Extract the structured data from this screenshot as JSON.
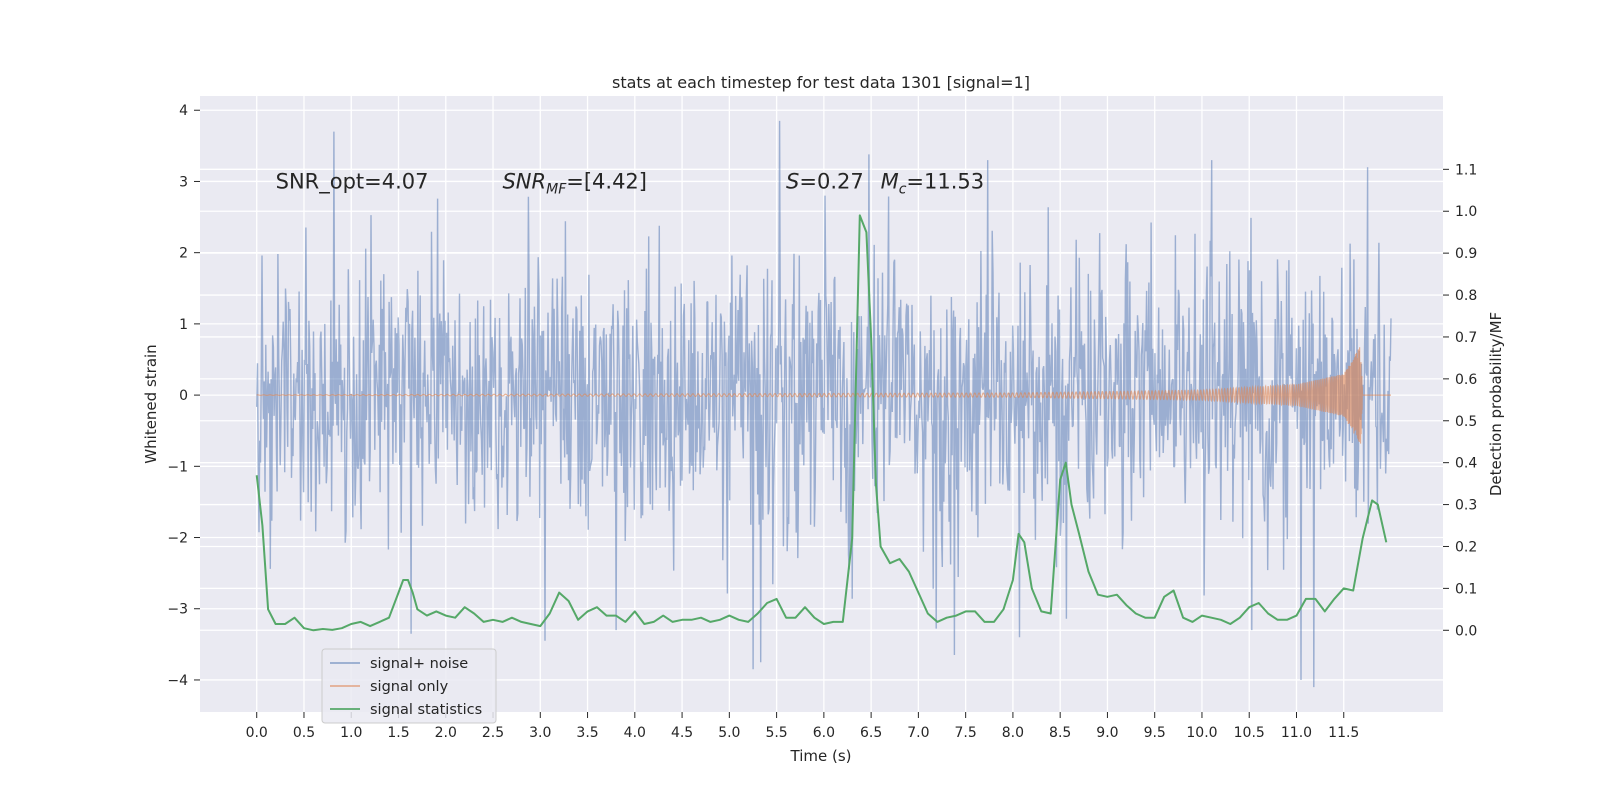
{
  "chart_data": {
    "type": "line",
    "title": "stats at each timestep for test data 1301 [signal=1]",
    "xlabel": "Time (s)",
    "ylabel_left": "Whitened strain",
    "ylabel_right": "Detection probability/MF",
    "xlim": [
      -0.6,
      12.55
    ],
    "ylim_left": [
      -4.45,
      4.2
    ],
    "ylim_right": [
      -0.195,
      1.275
    ],
    "x_ticks": [
      0.0,
      0.5,
      1.0,
      1.5,
      2.0,
      2.5,
      3.0,
      3.5,
      4.0,
      4.5,
      5.0,
      5.5,
      6.0,
      6.5,
      7.0,
      7.5,
      8.0,
      8.5,
      9.0,
      9.5,
      10.0,
      10.5,
      11.0,
      11.5
    ],
    "x_tick_labels": [
      "0.0",
      "0.5",
      "1.0",
      "1.5",
      "2.0",
      "2.5",
      "3.0",
      "3.5",
      "4.0",
      "4.5",
      "5.0",
      "5.5",
      "6.0",
      "6.5",
      "7.0",
      "7.5",
      "8.0",
      "8.5",
      "9.0",
      "9.5",
      "10.0",
      "10.5",
      "11.0",
      "11.5"
    ],
    "y_left_ticks": [
      -4,
      -3,
      -2,
      -1,
      0,
      1,
      2,
      3,
      4
    ],
    "y_left_tick_labels": [
      "−4",
      "−3",
      "−2",
      "−1",
      "0",
      "1",
      "2",
      "3",
      "4"
    ],
    "y_right_ticks": [
      0.0,
      0.1,
      0.2,
      0.3,
      0.4,
      0.5,
      0.6,
      0.7,
      0.8,
      0.9,
      1.0,
      1.1
    ],
    "y_right_tick_labels": [
      "0.0",
      "0.1",
      "0.2",
      "0.3",
      "0.4",
      "0.5",
      "0.6",
      "0.7",
      "0.8",
      "0.9",
      "1.0",
      "1.1"
    ],
    "annotations": [
      {
        "plain": "SNR_opt=4.07",
        "x": 0.2,
        "y": 3.0
      },
      {
        "italic": "SNR",
        "sub": "MF",
        "tail": "=[4.42]",
        "x": 2.6,
        "y": 3.0
      },
      {
        "italic": "S",
        "tail": "=0.27",
        "x": 5.6,
        "y": 3.0
      },
      {
        "italic": "M",
        "sub": "c",
        "tail": "=11.53",
        "x": 6.6,
        "y": 3.0
      }
    ],
    "legend": {
      "position": "lower-left",
      "entries": [
        "signal+ noise",
        "signal only",
        "signal statistics"
      ]
    },
    "series": [
      {
        "name": "signal+ noise",
        "axis": "left",
        "color": "#4c72b0",
        "kind": "whitened noise (std ~1, range approx -4.1 to 3.85)",
        "x_range": [
          0.0,
          12.0
        ],
        "sample_count": 1500,
        "peaks": [
          {
            "x": 0.82,
            "y": 3.7
          },
          {
            "x": 5.53,
            "y": 3.85
          },
          {
            "x": 6.48,
            "y": 3.38
          },
          {
            "x": 7.73,
            "y": 3.3
          },
          {
            "x": 10.1,
            "y": 3.3
          },
          {
            "x": 11.75,
            "y": 3.2
          },
          {
            "x": 5.25,
            "y": -3.85
          },
          {
            "x": 5.33,
            "y": -3.75
          },
          {
            "x": 11.05,
            "y": -4.0
          },
          {
            "x": 11.18,
            "y": -4.1
          },
          {
            "x": 7.38,
            "y": -3.65
          },
          {
            "x": 1.63,
            "y": -3.35
          },
          {
            "x": 3.05,
            "y": -3.45
          },
          {
            "x": 8.07,
            "y": -3.4
          },
          {
            "x": 3.8,
            "y": -3.3
          }
        ]
      },
      {
        "name": "signal only",
        "axis": "left",
        "color": "#dd8452",
        "kind": "chirp with growing amplitude",
        "x_range": [
          0.0,
          12.0
        ],
        "amplitude_envelope": [
          {
            "x": 0.0,
            "y": 0.003
          },
          {
            "x": 8.0,
            "y": 0.03
          },
          {
            "x": 10.0,
            "y": 0.07
          },
          {
            "x": 11.0,
            "y": 0.15
          },
          {
            "x": 11.5,
            "y": 0.3
          },
          {
            "x": 11.68,
            "y": 0.7
          },
          {
            "x": 11.7,
            "y": 0.0
          }
        ]
      },
      {
        "name": "signal statistics",
        "axis": "right",
        "color": "#55a868",
        "x": [
          0.0,
          0.06,
          0.12,
          0.2,
          0.3,
          0.4,
          0.5,
          0.6,
          0.7,
          0.8,
          0.9,
          1.0,
          1.1,
          1.2,
          1.3,
          1.4,
          1.5,
          1.55,
          1.6,
          1.65,
          1.7,
          1.8,
          1.9,
          2.0,
          2.1,
          2.2,
          2.3,
          2.4,
          2.5,
          2.6,
          2.7,
          2.8,
          2.9,
          3.0,
          3.1,
          3.2,
          3.3,
          3.4,
          3.5,
          3.6,
          3.7,
          3.8,
          3.9,
          4.0,
          4.1,
          4.2,
          4.3,
          4.4,
          4.5,
          4.6,
          4.7,
          4.8,
          4.9,
          5.0,
          5.1,
          5.2,
          5.3,
          5.4,
          5.5,
          5.6,
          5.7,
          5.8,
          5.9,
          6.0,
          6.1,
          6.2,
          6.3,
          6.38,
          6.45,
          6.5,
          6.55,
          6.6,
          6.7,
          6.8,
          6.9,
          7.0,
          7.1,
          7.2,
          7.3,
          7.4,
          7.5,
          7.6,
          7.7,
          7.8,
          7.9,
          8.0,
          8.06,
          8.12,
          8.2,
          8.3,
          8.4,
          8.5,
          8.56,
          8.62,
          8.7,
          8.8,
          8.9,
          9.0,
          9.1,
          9.2,
          9.3,
          9.4,
          9.5,
          9.6,
          9.7,
          9.8,
          9.9,
          10.0,
          10.1,
          10.2,
          10.3,
          10.4,
          10.5,
          10.6,
          10.7,
          10.8,
          10.9,
          11.0,
          11.1,
          11.2,
          11.3,
          11.4,
          11.5,
          11.6,
          11.7,
          11.8,
          11.86,
          11.95
        ],
        "values": [
          0.37,
          0.25,
          0.05,
          0.015,
          0.015,
          0.03,
          0.005,
          0.0,
          0.003,
          0.001,
          0.005,
          0.015,
          0.02,
          0.01,
          0.02,
          0.03,
          0.09,
          0.12,
          0.12,
          0.09,
          0.05,
          0.035,
          0.045,
          0.035,
          0.03,
          0.055,
          0.04,
          0.02,
          0.025,
          0.02,
          0.03,
          0.02,
          0.015,
          0.01,
          0.04,
          0.09,
          0.07,
          0.025,
          0.045,
          0.055,
          0.035,
          0.035,
          0.02,
          0.045,
          0.015,
          0.02,
          0.035,
          0.02,
          0.025,
          0.025,
          0.03,
          0.02,
          0.025,
          0.035,
          0.025,
          0.02,
          0.04,
          0.065,
          0.075,
          0.03,
          0.03,
          0.055,
          0.03,
          0.015,
          0.02,
          0.02,
          0.22,
          0.99,
          0.95,
          0.7,
          0.35,
          0.2,
          0.16,
          0.17,
          0.14,
          0.09,
          0.04,
          0.02,
          0.03,
          0.035,
          0.045,
          0.045,
          0.02,
          0.02,
          0.05,
          0.12,
          0.23,
          0.21,
          0.1,
          0.045,
          0.04,
          0.36,
          0.4,
          0.3,
          0.23,
          0.14,
          0.085,
          0.08,
          0.085,
          0.06,
          0.04,
          0.03,
          0.03,
          0.08,
          0.095,
          0.03,
          0.02,
          0.035,
          0.03,
          0.025,
          0.015,
          0.03,
          0.055,
          0.065,
          0.04,
          0.025,
          0.025,
          0.035,
          0.075,
          0.075,
          0.045,
          0.075,
          0.1,
          0.095,
          0.22,
          0.31,
          0.3,
          0.21
        ]
      }
    ]
  }
}
